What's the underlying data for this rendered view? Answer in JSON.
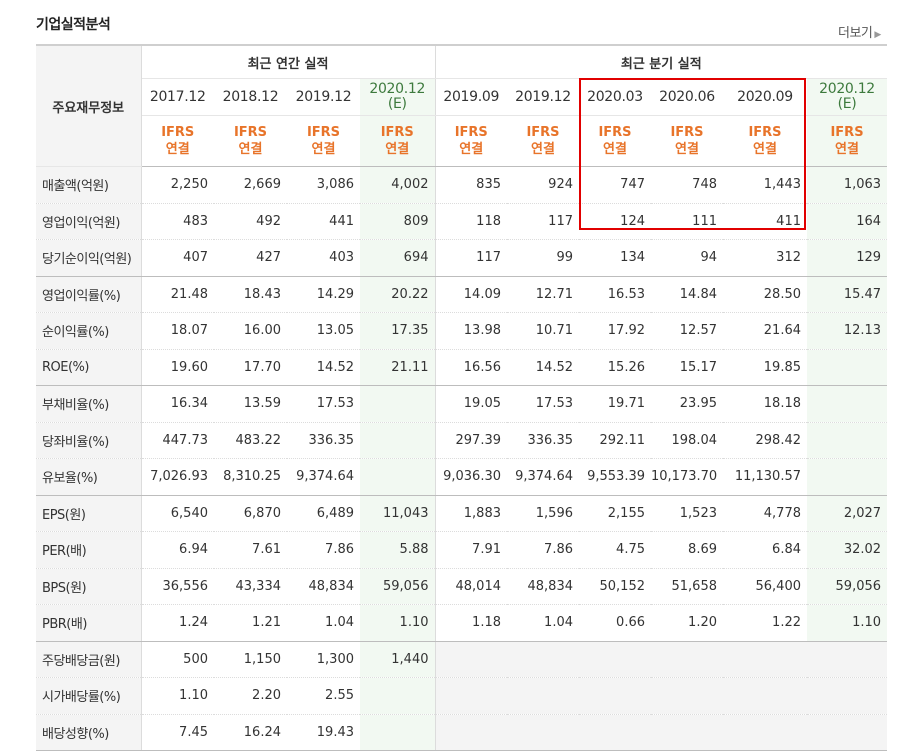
{
  "title": "기업실적분석",
  "more_label": "더보기",
  "header": {
    "row_label": "주요재무정보",
    "annual_group": "최근 연간 실적",
    "quarter_group": "최근 분기 실적",
    "periods": [
      {
        "period": "2017.12",
        "est": ""
      },
      {
        "period": "2018.12",
        "est": ""
      },
      {
        "period": "2019.12",
        "est": ""
      },
      {
        "period": "2020.12",
        "est": "(E)"
      },
      {
        "period": "2019.09",
        "est": ""
      },
      {
        "period": "2019.12",
        "est": ""
      },
      {
        "period": "2020.03",
        "est": ""
      },
      {
        "period": "2020.06",
        "est": ""
      },
      {
        "period": "2020.09",
        "est": ""
      },
      {
        "period": "2020.12",
        "est": "(E)"
      }
    ],
    "ifrs_line1": "IFRS",
    "ifrs_line2": "연결"
  },
  "rows": [
    {
      "label": "매출액(억원)",
      "values": [
        "2,250",
        "2,669",
        "3,086",
        "4,002",
        "835",
        "924",
        "747",
        "748",
        "1,443",
        "1,063"
      ]
    },
    {
      "label": "영업이익(억원)",
      "values": [
        "483",
        "492",
        "441",
        "809",
        "118",
        "117",
        "124",
        "111",
        "411",
        "164"
      ]
    },
    {
      "label": "당기순이익(억원)",
      "values": [
        "407",
        "427",
        "403",
        "694",
        "117",
        "99",
        "134",
        "94",
        "312",
        "129"
      ]
    },
    {
      "label": "영업이익률(%)",
      "values": [
        "21.48",
        "18.43",
        "14.29",
        "20.22",
        "14.09",
        "12.71",
        "16.53",
        "14.84",
        "28.50",
        "15.47"
      ]
    },
    {
      "label": "순이익률(%)",
      "values": [
        "18.07",
        "16.00",
        "13.05",
        "17.35",
        "13.98",
        "10.71",
        "17.92",
        "12.57",
        "21.64",
        "12.13"
      ]
    },
    {
      "label": "ROE(%)",
      "values": [
        "19.60",
        "17.70",
        "14.52",
        "21.11",
        "16.56",
        "14.52",
        "15.26",
        "15.17",
        "19.85",
        ""
      ]
    },
    {
      "label": "부채비율(%)",
      "values": [
        "16.34",
        "13.59",
        "17.53",
        "",
        "19.05",
        "17.53",
        "19.71",
        "23.95",
        "18.18",
        ""
      ]
    },
    {
      "label": "당좌비율(%)",
      "values": [
        "447.73",
        "483.22",
        "336.35",
        "",
        "297.39",
        "336.35",
        "292.11",
        "198.04",
        "298.42",
        ""
      ]
    },
    {
      "label": "유보율(%)",
      "values": [
        "7,026.93",
        "8,310.25",
        "9,374.64",
        "",
        "9,036.30",
        "9,374.64",
        "9,553.39",
        "10,173.70",
        "11,130.57",
        ""
      ]
    },
    {
      "label": "EPS(원)",
      "values": [
        "6,540",
        "6,870",
        "6,489",
        "11,043",
        "1,883",
        "1,596",
        "2,155",
        "1,523",
        "4,778",
        "2,027"
      ]
    },
    {
      "label": "PER(배)",
      "values": [
        "6.94",
        "7.61",
        "7.86",
        "5.88",
        "7.91",
        "7.86",
        "4.75",
        "8.69",
        "6.84",
        "32.02"
      ]
    },
    {
      "label": "BPS(원)",
      "values": [
        "36,556",
        "43,334",
        "48,834",
        "59,056",
        "48,014",
        "48,834",
        "50,152",
        "51,658",
        "56,400",
        "59,056"
      ]
    },
    {
      "label": "PBR(배)",
      "values": [
        "1.24",
        "1.21",
        "1.04",
        "1.10",
        "1.18",
        "1.04",
        "0.66",
        "1.20",
        "1.22",
        "1.10"
      ]
    },
    {
      "label": "주당배당금(원)",
      "values": [
        "500",
        "1,150",
        "1,300",
        "1,440",
        "",
        "",
        "",
        "",
        "",
        ""
      ]
    },
    {
      "label": "시가배당률(%)",
      "values": [
        "1.10",
        "2.20",
        "2.55",
        "",
        "",
        "",
        "",
        "",
        "",
        ""
      ]
    },
    {
      "label": "배당성향(%)",
      "values": [
        "7.45",
        "16.24",
        "19.43",
        "",
        "",
        "",
        "",
        "",
        "",
        ""
      ]
    }
  ],
  "highlight_color": "#e10000",
  "ifrs_color": "#e8742a",
  "estimate_color": "#3d7a3d"
}
